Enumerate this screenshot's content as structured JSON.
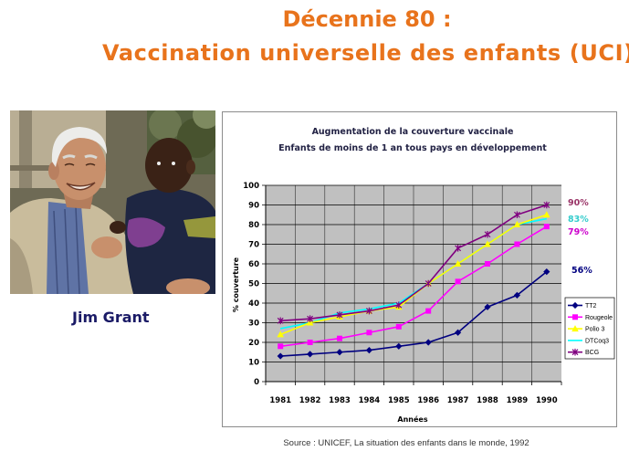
{
  "slide": {
    "title_line1": "Décennie 80 :",
    "title_line2": "Vaccination universelle des enfants (UCI)",
    "title_color": "#e8731c",
    "photo_caption": "Jim Grant",
    "source": "Source : UNICEF, La situation des enfants dans le monde, 1992"
  },
  "chart_data": {
    "type": "line",
    "title": "Augmentation de la couverture vaccinale",
    "subtitle": "Enfants de moins de 1 an tous pays en développement",
    "xlabel": "Années",
    "ylabel": "% couverture",
    "ylim": [
      0,
      100
    ],
    "yticks": [
      0,
      10,
      20,
      30,
      40,
      50,
      60,
      70,
      80,
      90,
      100
    ],
    "categories": [
      "1981",
      "1982",
      "1983",
      "1984",
      "1985",
      "1986",
      "1987",
      "1988",
      "1989",
      "1990"
    ],
    "grid": true,
    "plot_background": "#c0c0c0",
    "legend": "right",
    "series": [
      {
        "name": "TT2",
        "color": "#000080",
        "marker": "diamond",
        "values": [
          13,
          14,
          15,
          16,
          18,
          20,
          25,
          38,
          44,
          56
        ]
      },
      {
        "name": "Rougeole",
        "color": "#ff00ff",
        "marker": "square",
        "values": [
          18,
          20,
          22,
          25,
          28,
          36,
          51,
          60,
          70,
          79
        ]
      },
      {
        "name": "Polio 3",
        "color": "#ffff00",
        "marker": "triangle",
        "values": [
          24,
          30,
          33,
          36,
          38,
          50,
          60,
          70,
          80,
          85
        ]
      },
      {
        "name": "DTCoq3",
        "color": "#00ffff",
        "marker": "none",
        "values": [
          27,
          30,
          35,
          37,
          40,
          50,
          60,
          70,
          80,
          83
        ]
      },
      {
        "name": "BCG",
        "color": "#800080",
        "marker": "asterisk",
        "values": [
          31,
          32,
          34,
          36,
          39,
          50,
          68,
          75,
          85,
          90
        ]
      }
    ],
    "annotations": [
      {
        "text": "90%",
        "color": "#993366"
      },
      {
        "text": "83%",
        "color": "#33cccc"
      },
      {
        "text": "79%",
        "color": "#cc00cc"
      },
      {
        "text": "56%",
        "color": "#000080"
      }
    ]
  }
}
